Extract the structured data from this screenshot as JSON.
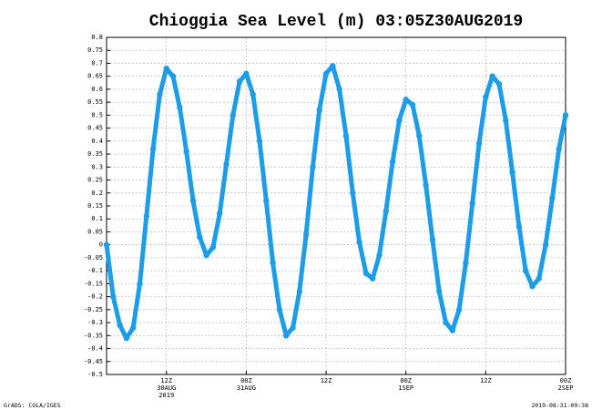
{
  "chart_data": {
    "type": "line",
    "title": "Chioggia Sea Level (m) 03:05Z30AUG2019",
    "credit": "GrADS: COLA/IGES",
    "timestamp": "2019-08-31-09:38",
    "color": "#1c9de9",
    "grid": true,
    "x": [
      3,
      4,
      5,
      6,
      7,
      8,
      9,
      10,
      11,
      12,
      13,
      14,
      15,
      16,
      17,
      18,
      19,
      20,
      21,
      22,
      23,
      24,
      25,
      26,
      27,
      28,
      29,
      30,
      31,
      32,
      33,
      34,
      35,
      36,
      37,
      38,
      39,
      40,
      41,
      42,
      43,
      44,
      45,
      46,
      47,
      48,
      49,
      50,
      51,
      52,
      53,
      54,
      55,
      56,
      57,
      58,
      59,
      60,
      61,
      62,
      63,
      64,
      65,
      66,
      67,
      68,
      69,
      70,
      71,
      72
    ],
    "values": [
      0,
      -0.2,
      -0.31,
      -0.36,
      -0.32,
      -0.15,
      0.11,
      0.37,
      0.58,
      0.68,
      0.65,
      0.53,
      0.36,
      0.17,
      0.03,
      -0.04,
      -0.01,
      0.12,
      0.31,
      0.5,
      0.63,
      0.66,
      0.58,
      0.4,
      0.17,
      -0.07,
      -0.25,
      -0.35,
      -0.32,
      -0.18,
      0.04,
      0.3,
      0.52,
      0.66,
      0.69,
      0.6,
      0.42,
      0.2,
      0.01,
      -0.11,
      -0.13,
      -0.04,
      0.13,
      0.32,
      0.48,
      0.56,
      0.54,
      0.42,
      0.23,
      0.02,
      -0.18,
      -0.3,
      -0.33,
      -0.25,
      -0.07,
      0.16,
      0.39,
      0.57,
      0.65,
      0.62,
      0.48,
      0.28,
      0.07,
      -0.1,
      -0.16,
      -0.13,
      0,
      0.18,
      0.37,
      0.5
    ],
    "xlim": [
      3,
      72
    ],
    "xticks": [
      {
        "value": 12,
        "label": [
          "12Z",
          "30AUG",
          "2019"
        ]
      },
      {
        "value": 24,
        "label": [
          "00Z",
          "31AUG"
        ]
      },
      {
        "value": 36,
        "label": [
          "12Z"
        ]
      },
      {
        "value": 48,
        "label": [
          "00Z",
          "1SEP"
        ]
      },
      {
        "value": 60,
        "label": [
          "12Z"
        ]
      },
      {
        "value": 72,
        "label": [
          "00Z",
          "2SEP"
        ]
      }
    ],
    "ylim": [
      -0.5,
      0.8
    ],
    "yticks": [
      0.8,
      0.75,
      0.7,
      0.65,
      0.6,
      0.55,
      0.5,
      0.45,
      0.4,
      0.35,
      0.3,
      0.25,
      0.2,
      0.15,
      0.1,
      0.05,
      0,
      -0.05,
      -0.1,
      -0.15,
      -0.2,
      -0.25,
      -0.3,
      -0.35,
      -0.4,
      -0.45,
      -0.5
    ]
  }
}
